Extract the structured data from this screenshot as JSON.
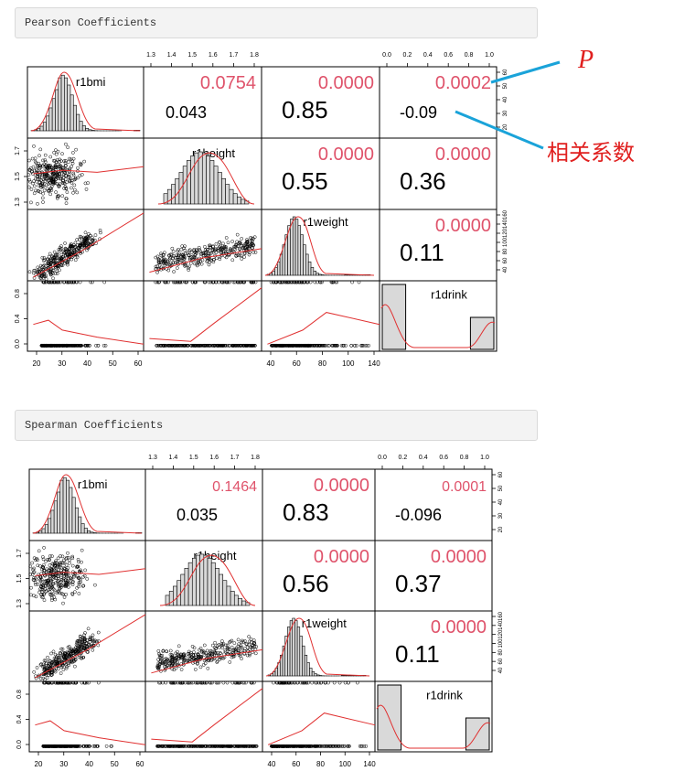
{
  "sections": {
    "pearson_title": "Pearson Coefficients",
    "spearman_title": "Spearman Coefficients"
  },
  "annotations": {
    "p_label": "P",
    "corr_label": "相关系数",
    "line_color": "#1aa3d9",
    "text_color": "#e0201f"
  },
  "colors": {
    "p_value": "#df536b",
    "corr": "#000000",
    "fit": "#e03030",
    "bar": "#d9d9d9"
  },
  "chart_data": [
    {
      "type": "scatter-matrix",
      "title": "Pearson Coefficients",
      "variables": [
        "r1bmi",
        "r1height",
        "r1weight",
        "r1drink"
      ],
      "diagonal_labels": [
        "r1bmi",
        "r1height",
        "r1weight",
        "r1drink"
      ],
      "upper_panels": [
        {
          "row": 0,
          "col": 1,
          "p": "0.0754",
          "r": "0.043"
        },
        {
          "row": 0,
          "col": 2,
          "p": "0.0000",
          "r": "0.85"
        },
        {
          "row": 0,
          "col": 3,
          "p": "0.0002",
          "r": "-0.09"
        },
        {
          "row": 1,
          "col": 2,
          "p": "0.0000",
          "r": "0.55"
        },
        {
          "row": 1,
          "col": 3,
          "p": "0.0000",
          "r": "0.36"
        },
        {
          "row": 2,
          "col": 3,
          "p": "0.0000",
          "r": "0.11"
        }
      ],
      "axes": {
        "top_col1": [
          "1.3",
          "1.4",
          "1.5",
          "1.6",
          "1.7",
          "1.8"
        ],
        "top_col3": [
          "0.0",
          "0.2",
          "0.4",
          "0.6",
          "0.8",
          "1.0"
        ],
        "right_row0": [
          "20",
          "30",
          "40",
          "50",
          "60"
        ],
        "right_row2": [
          "40",
          "60",
          "80",
          "100",
          "120",
          "140",
          "160"
        ],
        "left_row1": [
          "1.3",
          "1.5",
          "1.7"
        ],
        "left_row3": [
          "0.0",
          "0.4",
          "0.8"
        ],
        "bottom_col0": [
          "20",
          "30",
          "40",
          "50",
          "60"
        ],
        "bottom_col2": [
          "40",
          "60",
          "80",
          "100",
          "140"
        ]
      }
    },
    {
      "type": "scatter-matrix",
      "title": "Spearman Coefficients",
      "variables": [
        "r1bmi",
        "r1height",
        "r1weight",
        "r1drink"
      ],
      "diagonal_labels": [
        "r1bmi",
        "r1height",
        "r1weight",
        "r1drink"
      ],
      "upper_panels": [
        {
          "row": 0,
          "col": 1,
          "p": "0.1464",
          "r": "0.035"
        },
        {
          "row": 0,
          "col": 2,
          "p": "0.0000",
          "r": "0.83"
        },
        {
          "row": 0,
          "col": 3,
          "p": "0.0001",
          "r": "-0.096"
        },
        {
          "row": 1,
          "col": 2,
          "p": "0.0000",
          "r": "0.56"
        },
        {
          "row": 1,
          "col": 3,
          "p": "0.0000",
          "r": "0.37"
        },
        {
          "row": 2,
          "col": 3,
          "p": "0.0000",
          "r": "0.11"
        }
      ],
      "axes": {
        "top_col1": [
          "1.3",
          "1.4",
          "1.5",
          "1.6",
          "1.7",
          "1.8"
        ],
        "top_col3": [
          "0.0",
          "0.2",
          "0.4",
          "0.6",
          "0.8",
          "1.0"
        ],
        "right_row0": [
          "20",
          "30",
          "40",
          "50",
          "60"
        ],
        "right_row2": [
          "40",
          "60",
          "80",
          "100",
          "120",
          "140",
          "160"
        ],
        "left_row1": [
          "1.3",
          "1.5",
          "1.7"
        ],
        "left_row3": [
          "0.0",
          "0.4",
          "0.8"
        ],
        "bottom_col0": [
          "20",
          "30",
          "40",
          "50",
          "60"
        ],
        "bottom_col2": [
          "40",
          "60",
          "80",
          "100",
          "140"
        ]
      }
    }
  ]
}
